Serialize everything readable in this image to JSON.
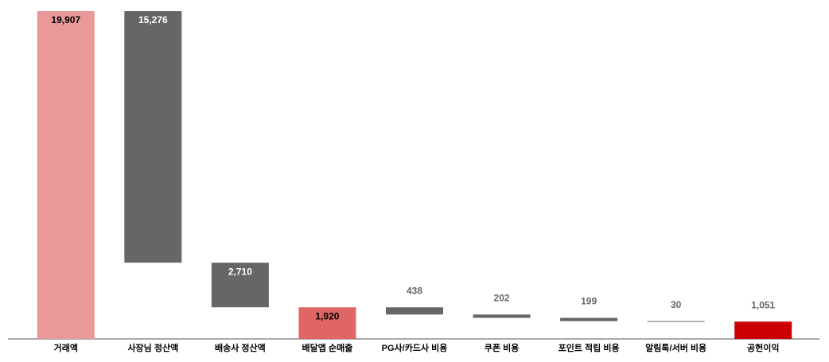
{
  "chart_data": {
    "type": "waterfall",
    "categories": [
      "거래액",
      "사장님 정산액",
      "배송사 정산액",
      "배달앱 순매출",
      "PG사/카드사 비용",
      "쿠폰 비용",
      "포인트 적립 비용",
      "알림톡/서버 비용",
      "공헌이익"
    ],
    "values": [
      19907,
      15276,
      2710,
      1920,
      438,
      202,
      199,
      30,
      1051
    ],
    "value_labels": [
      "19,907",
      "15,276",
      "2,710",
      "1,920",
      "438",
      "202",
      "199",
      "30",
      "1,051"
    ],
    "measures": [
      "total",
      "decrease",
      "decrease",
      "total",
      "decrease",
      "decrease",
      "decrease",
      "decrease",
      "total"
    ],
    "colors": [
      "#ea9999",
      "#666666",
      "#666666",
      "#e06666",
      "#666666",
      "#666666",
      "#666666",
      "#666666",
      "#cc0000"
    ]
  }
}
